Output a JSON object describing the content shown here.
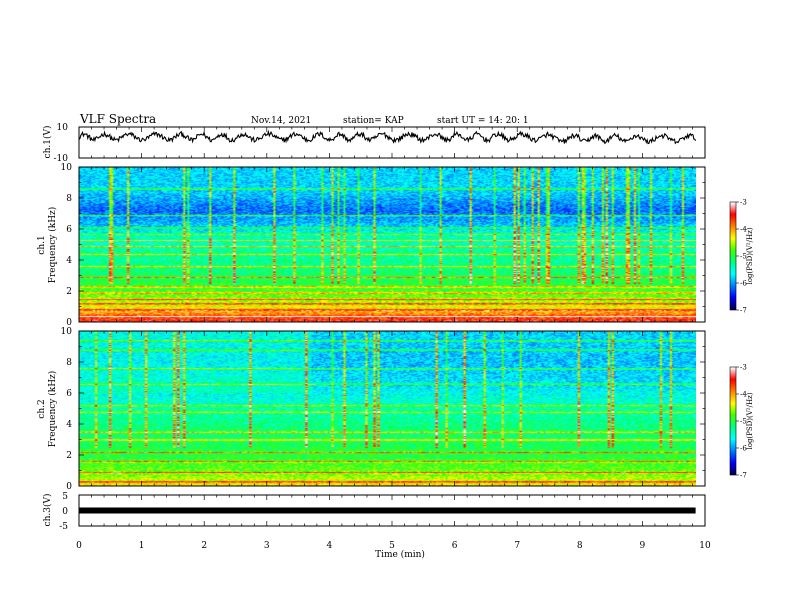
{
  "header": {
    "title": "VLF Spectra",
    "date": "Nov.14, 2021",
    "station": "station= KAP",
    "start": "start  UT =   14: 20: 1"
  },
  "chart_data": [
    {
      "type": "line",
      "name": "ch1-waveform",
      "ylabel": "ch.1(V)",
      "ylim": [
        -10,
        10
      ],
      "ytick_labels": [
        "10",
        "-10"
      ],
      "xlim": [
        0,
        10
      ],
      "x_extent": [
        0,
        9.85
      ],
      "mean": 3.5,
      "amplitude": 3.5,
      "mean_after_7_5": 2.5
    },
    {
      "type": "heatmap",
      "name": "ch1-spectrogram",
      "ylabel_line1": "ch.1",
      "ylabel_line2": "Frequency (kHz)",
      "ylim": [
        0,
        10
      ],
      "ytick_labels": [
        "0",
        "2",
        "4",
        "6",
        "8",
        "10"
      ],
      "xlim": [
        0,
        10
      ],
      "x_extent": [
        0,
        9.85
      ],
      "colorbar": {
        "label": "log(PSD)(V²/Hz)",
        "range": [
          -7,
          -3
        ],
        "tick_labels": [
          "-3",
          "-4",
          "-5",
          "-6",
          "-7"
        ]
      },
      "profile": [
        {
          "f": 0.0,
          "level": 0.92
        },
        {
          "f": 0.5,
          "level": 0.78
        },
        {
          "f": 1.0,
          "level": 0.66
        },
        {
          "f": 1.6,
          "level": 0.58
        },
        {
          "f": 2.5,
          "level": 0.5
        },
        {
          "f": 3.5,
          "level": 0.44
        },
        {
          "f": 4.5,
          "level": 0.42
        },
        {
          "f": 5.5,
          "level": 0.38
        },
        {
          "f": 6.3,
          "level": 0.28
        },
        {
          "f": 7.2,
          "level": 0.2
        },
        {
          "f": 8.5,
          "level": 0.3
        },
        {
          "f": 10.0,
          "level": 0.3
        }
      ],
      "lines_khz": [
        0.4,
        0.8,
        1.2,
        1.5,
        1.9,
        2.3,
        2.9,
        3.6,
        4.4,
        4.9,
        5.3,
        5.7,
        6.1,
        6.9,
        8.6
      ],
      "spike_density": 0.55
    },
    {
      "type": "heatmap",
      "name": "ch2-spectrogram",
      "ylabel_line1": "ch.2",
      "ylabel_line2": "Frequency (kHz)",
      "ylim": [
        0,
        10
      ],
      "ytick_labels": [
        "0",
        "2",
        "4",
        "6",
        "8",
        "10"
      ],
      "xlim": [
        0,
        10
      ],
      "x_extent": [
        0,
        9.85
      ],
      "colorbar": {
        "label": "log(PSD)(V²/Hz)",
        "range": [
          -7,
          -3
        ],
        "tick_labels": [
          "-3",
          "-4",
          "-5",
          "-6",
          "-7"
        ]
      },
      "segment_break_min": 3.7,
      "profile": [
        {
          "f": 0.0,
          "level": 0.7
        },
        {
          "f": 0.8,
          "level": 0.58
        },
        {
          "f": 2.0,
          "level": 0.5
        },
        {
          "f": 3.5,
          "level": 0.46
        },
        {
          "f": 5.0,
          "level": 0.4
        },
        {
          "f": 6.5,
          "level": 0.32
        },
        {
          "f": 8.0,
          "level": 0.28
        },
        {
          "f": 10.0,
          "level": 0.3
        }
      ],
      "lines_khz": [
        0.3,
        0.9,
        1.6,
        2.2,
        3.0,
        3.5,
        4.8,
        5.2,
        6.6,
        7.6,
        8.8,
        9.4
      ],
      "spike_density": 0.4
    },
    {
      "type": "line",
      "name": "ch3-waveform",
      "ylabel": "ch.3(V)",
      "ylim": [
        -5,
        5
      ],
      "ytick_labels": [
        "5",
        "0",
        "-5"
      ],
      "xlim": [
        0,
        10
      ],
      "x_extent": [
        0,
        9.85
      ],
      "value": 0
    }
  ],
  "xaxis": {
    "label": "Time  (min)",
    "tick_labels": [
      "0",
      "1",
      "2",
      "3",
      "4",
      "5",
      "6",
      "7",
      "8",
      "9",
      "10"
    ]
  },
  "colors": {
    "colormap": [
      "#000050",
      "#0000ff",
      "#0080ff",
      "#00ffff",
      "#00ff80",
      "#40ff00",
      "#ffff00",
      "#ff8000",
      "#ff0000",
      "#ffffff"
    ]
  }
}
